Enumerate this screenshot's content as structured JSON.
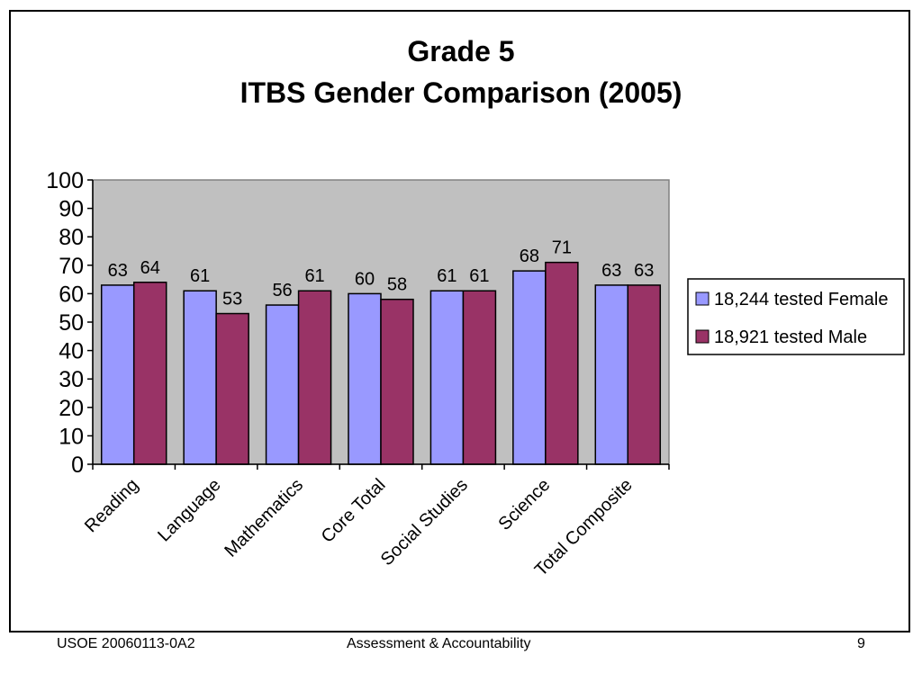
{
  "chart_data": {
    "type": "bar",
    "title": "Grade 5",
    "subtitle": "ITBS Gender Comparison (2005)",
    "categories": [
      "Reading",
      "Language",
      "Mathematics",
      "Core Total",
      "Social Studies",
      "Science",
      "Total Composite"
    ],
    "series": [
      {
        "name": "18,244 tested Female",
        "values": [
          63,
          61,
          56,
          60,
          61,
          68,
          63
        ],
        "color": "#9999ff"
      },
      {
        "name": "18,921 tested Male",
        "values": [
          64,
          53,
          61,
          58,
          61,
          71,
          63
        ],
        "color": "#993366"
      }
    ],
    "ylim": [
      0,
      100
    ],
    "yticks": [
      0,
      10,
      20,
      30,
      40,
      50,
      60,
      70,
      80,
      90,
      100
    ],
    "grid": false,
    "plot_background": "#c0c0c0",
    "legend_position": "right",
    "data_labels": true
  },
  "footer": {
    "left": "USOE 20060113-0A2",
    "center": "Assessment & Accountability",
    "right": "9"
  }
}
